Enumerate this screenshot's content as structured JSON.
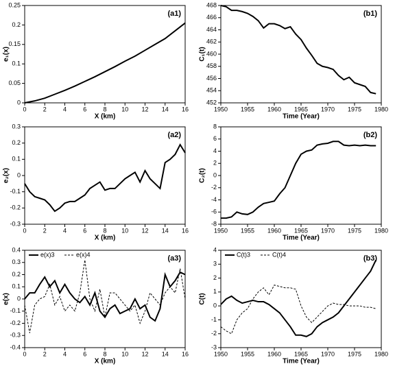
{
  "chart_data": [
    {
      "type": "line",
      "annotation": "(a1)",
      "x_label": "X (km)",
      "y_label": "e₁(x)",
      "xlim": [
        0,
        16
      ],
      "xticks": [
        0,
        2,
        4,
        6,
        8,
        10,
        12,
        14,
        16
      ],
      "ylim": [
        0,
        0.25
      ],
      "yticks": [
        0,
        0.05,
        0.1,
        0.15,
        0.2,
        0.25
      ],
      "color": "#000000",
      "x": [
        0,
        1,
        2,
        3,
        4,
        5,
        6,
        7,
        8,
        9,
        10,
        11,
        12,
        13,
        14,
        15,
        16
      ],
      "values": [
        0,
        0.005,
        0.012,
        0.022,
        0.032,
        0.043,
        0.055,
        0.067,
        0.08,
        0.093,
        0.107,
        0.12,
        0.135,
        0.15,
        0.165,
        0.185,
        0.205
      ]
    },
    {
      "type": "line",
      "annotation": "(b1)",
      "x_label": "Time (Year)",
      "y_label": "C₁(t)",
      "xlim": [
        1950,
        1980
      ],
      "xticks": [
        1950,
        1955,
        1960,
        1965,
        1970,
        1975,
        1980
      ],
      "ylim": [
        452,
        468
      ],
      "yticks": [
        452,
        454,
        456,
        458,
        460,
        462,
        464,
        466,
        468
      ],
      "color": "#000000",
      "x": [
        1950,
        1951,
        1952,
        1953,
        1954,
        1955,
        1956,
        1957,
        1958,
        1959,
        1960,
        1961,
        1962,
        1963,
        1964,
        1965,
        1966,
        1967,
        1968,
        1969,
        1970,
        1971,
        1972,
        1973,
        1974,
        1975,
        1976,
        1977,
        1978,
        1979
      ],
      "values": [
        468,
        467.8,
        467.2,
        467.2,
        467,
        466.7,
        466.2,
        465.5,
        464.3,
        465,
        465,
        464.7,
        464.2,
        464.5,
        463.3,
        462.4,
        461,
        459.8,
        458.5,
        458,
        457.8,
        457.5,
        456.5,
        455.8,
        456.2,
        455.3,
        455,
        454.7,
        453.7,
        453.5
      ]
    },
    {
      "type": "line",
      "annotation": "(a2)",
      "x_label": "X (km)",
      "y_label": "e₂(x)",
      "xlim": [
        0,
        16
      ],
      "xticks": [
        0,
        2,
        4,
        6,
        8,
        10,
        12,
        14,
        16
      ],
      "ylim": [
        -0.3,
        0.3
      ],
      "yticks": [
        -0.3,
        -0.2,
        -0.1,
        0,
        0.1,
        0.2,
        0.3
      ],
      "color": "#000000",
      "x": [
        0,
        0.5,
        1,
        1.5,
        2,
        2.5,
        3,
        3.5,
        4,
        4.5,
        5,
        5.5,
        6,
        6.5,
        7,
        7.5,
        8,
        8.5,
        9,
        9.5,
        10,
        10.5,
        11,
        11.5,
        12,
        12.5,
        13,
        13.5,
        14,
        14.5,
        15,
        15.5,
        16
      ],
      "values": [
        -0.05,
        -0.1,
        -0.13,
        -0.14,
        -0.15,
        -0.18,
        -0.22,
        -0.2,
        -0.17,
        -0.16,
        -0.16,
        -0.14,
        -0.12,
        -0.08,
        -0.06,
        -0.04,
        -0.09,
        -0.08,
        -0.08,
        -0.05,
        -0.02,
        0,
        0.02,
        -0.04,
        0.03,
        -0.02,
        -0.05,
        -0.08,
        0.08,
        0.1,
        0.13,
        0.19,
        0.14
      ]
    },
    {
      "type": "line",
      "annotation": "(b2)",
      "x_label": "Time (Year)",
      "y_label": "C₂(t)",
      "xlim": [
        1950,
        1980
      ],
      "xticks": [
        1950,
        1955,
        1960,
        1965,
        1970,
        1975,
        1980
      ],
      "ylim": [
        -8,
        8
      ],
      "yticks": [
        -8,
        -6,
        -4,
        -2,
        0,
        2,
        4,
        6,
        8
      ],
      "color": "#000000",
      "x": [
        1950,
        1951,
        1952,
        1953,
        1954,
        1955,
        1956,
        1957,
        1958,
        1959,
        1960,
        1961,
        1962,
        1963,
        1964,
        1965,
        1966,
        1967,
        1968,
        1969,
        1970,
        1971,
        1972,
        1973,
        1974,
        1975,
        1976,
        1977,
        1978,
        1979
      ],
      "values": [
        -7,
        -7,
        -6.8,
        -6,
        -6.3,
        -6.4,
        -6,
        -5.2,
        -4.6,
        -4.4,
        -4.2,
        -3,
        -2,
        0,
        2,
        3.5,
        4,
        4.2,
        5,
        5.2,
        5.3,
        5.6,
        5.6,
        5,
        4.9,
        5,
        4.9,
        5,
        4.9,
        4.9
      ]
    },
    {
      "type": "line",
      "annotation": "(a3)",
      "x_label": "X (km)",
      "y_label": "e(x)",
      "legend": "upper left",
      "xlim": [
        0,
        16
      ],
      "xticks": [
        0,
        2,
        4,
        6,
        8,
        10,
        12,
        14,
        16
      ],
      "ylim": [
        -0.4,
        0.4
      ],
      "yticks": [
        -0.4,
        -0.3,
        -0.2,
        -0.1,
        0,
        0.1,
        0.2,
        0.3,
        0.4
      ],
      "x": [
        0,
        0.5,
        1,
        1.5,
        2,
        2.5,
        3,
        3.5,
        4,
        4.5,
        5,
        5.5,
        6,
        6.5,
        7,
        7.5,
        8,
        8.5,
        9,
        9.5,
        10,
        10.5,
        11,
        11.5,
        12,
        12.5,
        13,
        13.5,
        14,
        14.5,
        15,
        15.5,
        16
      ],
      "series": [
        {
          "name": "e(x)3",
          "color": "#000000",
          "style": "solid",
          "values": [
            0,
            0.05,
            0.05,
            0.12,
            0.18,
            0.1,
            0.15,
            0.05,
            0.12,
            0.05,
            0,
            -0.03,
            0.02,
            -0.05,
            0.05,
            -0.1,
            -0.15,
            -0.08,
            -0.05,
            -0.12,
            -0.1,
            -0.08,
            0,
            -0.08,
            -0.05,
            -0.15,
            -0.18,
            -0.08,
            0.2,
            0.1,
            0.15,
            0.22,
            0.2
          ]
        },
        {
          "name": "e(x)4",
          "color": "#000000",
          "style": "dashed",
          "values": [
            -0.05,
            -0.28,
            -0.05,
            0,
            0.02,
            0.12,
            -0.05,
            0.02,
            -0.1,
            -0.05,
            -0.1,
            0.05,
            0.32,
            0,
            -0.1,
            0.08,
            -0.15,
            0.05,
            0.05,
            0,
            -0.05,
            -0.1,
            -0.05,
            -0.2,
            -0.1,
            0.05,
            0,
            -0.05,
            0.05,
            0.1,
            0.05,
            0.25,
            0
          ]
        }
      ]
    },
    {
      "type": "line",
      "annotation": "(b3)",
      "x_label": "Time (Year)",
      "y_label": "C(t)",
      "legend": "upper left",
      "xlim": [
        1950,
        1980
      ],
      "xticks": [
        1950,
        1955,
        1960,
        1965,
        1970,
        1975,
        1980
      ],
      "ylim": [
        -3,
        4
      ],
      "yticks": [
        -3,
        -2,
        -1,
        0,
        1,
        2,
        3,
        4
      ],
      "x": [
        1950,
        1951,
        1952,
        1953,
        1954,
        1955,
        1956,
        1957,
        1958,
        1959,
        1960,
        1961,
        1962,
        1963,
        1964,
        1965,
        1966,
        1967,
        1968,
        1969,
        1970,
        1971,
        1972,
        1973,
        1974,
        1975,
        1976,
        1977,
        1978,
        1979
      ],
      "series": [
        {
          "name": "C(t)3",
          "color": "#000000",
          "style": "solid",
          "values": [
            0.1,
            0.5,
            0.7,
            0.4,
            0.2,
            0.3,
            0.4,
            0.3,
            0.3,
            0.1,
            -0.2,
            -0.5,
            -1,
            -1.5,
            -2.1,
            -2.1,
            -2.2,
            -2,
            -1.5,
            -1.2,
            -1,
            -0.8,
            -0.5,
            0,
            0.5,
            1,
            1.5,
            2,
            2.5,
            3.3
          ]
        },
        {
          "name": "C(t)4",
          "color": "#000000",
          "style": "dashed",
          "values": [
            -1.5,
            -1.8,
            -2,
            -1,
            -0.5,
            -0.2,
            0.5,
            1,
            1.3,
            0.8,
            1.5,
            1.4,
            1.3,
            1.3,
            1.2,
            0,
            -0.8,
            -1.2,
            -0.8,
            -0.4,
            0,
            0.2,
            0.1,
            0.1,
            0,
            0,
            0,
            -0.1,
            -0.1,
            -0.2
          ]
        }
      ]
    }
  ]
}
